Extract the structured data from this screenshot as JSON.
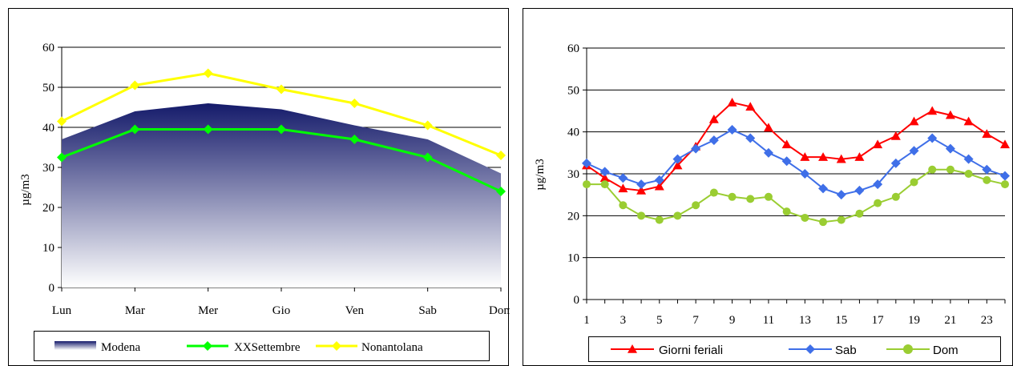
{
  "chart_data": [
    {
      "type": "line",
      "ylabel": "µg/m3",
      "ylim": [
        0,
        60
      ],
      "yticks": [
        0,
        10,
        20,
        30,
        40,
        50,
        60
      ],
      "grid": true,
      "legend_position": "bottom",
      "categories": [
        "Lun",
        "Mar",
        "Mer",
        "Gio",
        "Ven",
        "Sab",
        "Dom"
      ],
      "series": [
        {
          "name": "Modena",
          "kind": "area",
          "color": "#1a1f6e",
          "values": [
            37,
            44,
            46,
            44.5,
            40.5,
            37,
            28.5
          ]
        },
        {
          "name": "XXSettembre",
          "kind": "line",
          "marker": "diamond",
          "color": "#00ff00",
          "values": [
            32.5,
            39.5,
            39.5,
            39.5,
            37,
            32.5,
            24
          ]
        },
        {
          "name": "Nonantolana",
          "kind": "line",
          "marker": "diamond",
          "color": "#ffff00",
          "values": [
            41.5,
            50.5,
            53.5,
            49.5,
            46,
            40.5,
            33
          ]
        }
      ]
    },
    {
      "type": "line",
      "ylabel": "µg/m3",
      "ylim": [
        0,
        60
      ],
      "yticks": [
        0,
        10,
        20,
        30,
        40,
        50,
        60
      ],
      "xlim": [
        1,
        24
      ],
      "xticks": [
        1,
        3,
        5,
        7,
        9,
        11,
        13,
        15,
        17,
        19,
        21,
        23
      ],
      "grid": true,
      "legend_position": "bottom",
      "x": [
        1,
        2,
        3,
        4,
        5,
        6,
        7,
        8,
        9,
        10,
        11,
        12,
        13,
        14,
        15,
        16,
        17,
        18,
        19,
        20,
        21,
        22,
        23,
        24
      ],
      "series": [
        {
          "name": "Giorni feriali",
          "marker": "triangle",
          "color": "#ff0000",
          "values": [
            32,
            29,
            26.5,
            26,
            27,
            32,
            36.5,
            43,
            47,
            46,
            41,
            37,
            34,
            34,
            33.5,
            34,
            37,
            39,
            42.5,
            45,
            44,
            42.5,
            39.5,
            37
          ]
        },
        {
          "name": "Sab",
          "marker": "diamond",
          "color": "#3f6fe8",
          "values": [
            32.5,
            30.5,
            29,
            27.5,
            28.5,
            33.5,
            36,
            38,
            40.5,
            38.5,
            35,
            33,
            30,
            26.5,
            25,
            26,
            27.5,
            32.5,
            35.5,
            38.5,
            36,
            33.5,
            31,
            29.5
          ]
        },
        {
          "name": "Dom",
          "marker": "circle",
          "color": "#9acd32",
          "values": [
            27.5,
            27.5,
            22.5,
            20,
            19,
            20,
            22.5,
            25.5,
            24.5,
            24,
            24.5,
            21,
            19.5,
            18.5,
            19,
            20.5,
            23,
            24.5,
            28,
            31,
            31,
            30,
            28.5,
            27.5
          ]
        }
      ]
    }
  ]
}
